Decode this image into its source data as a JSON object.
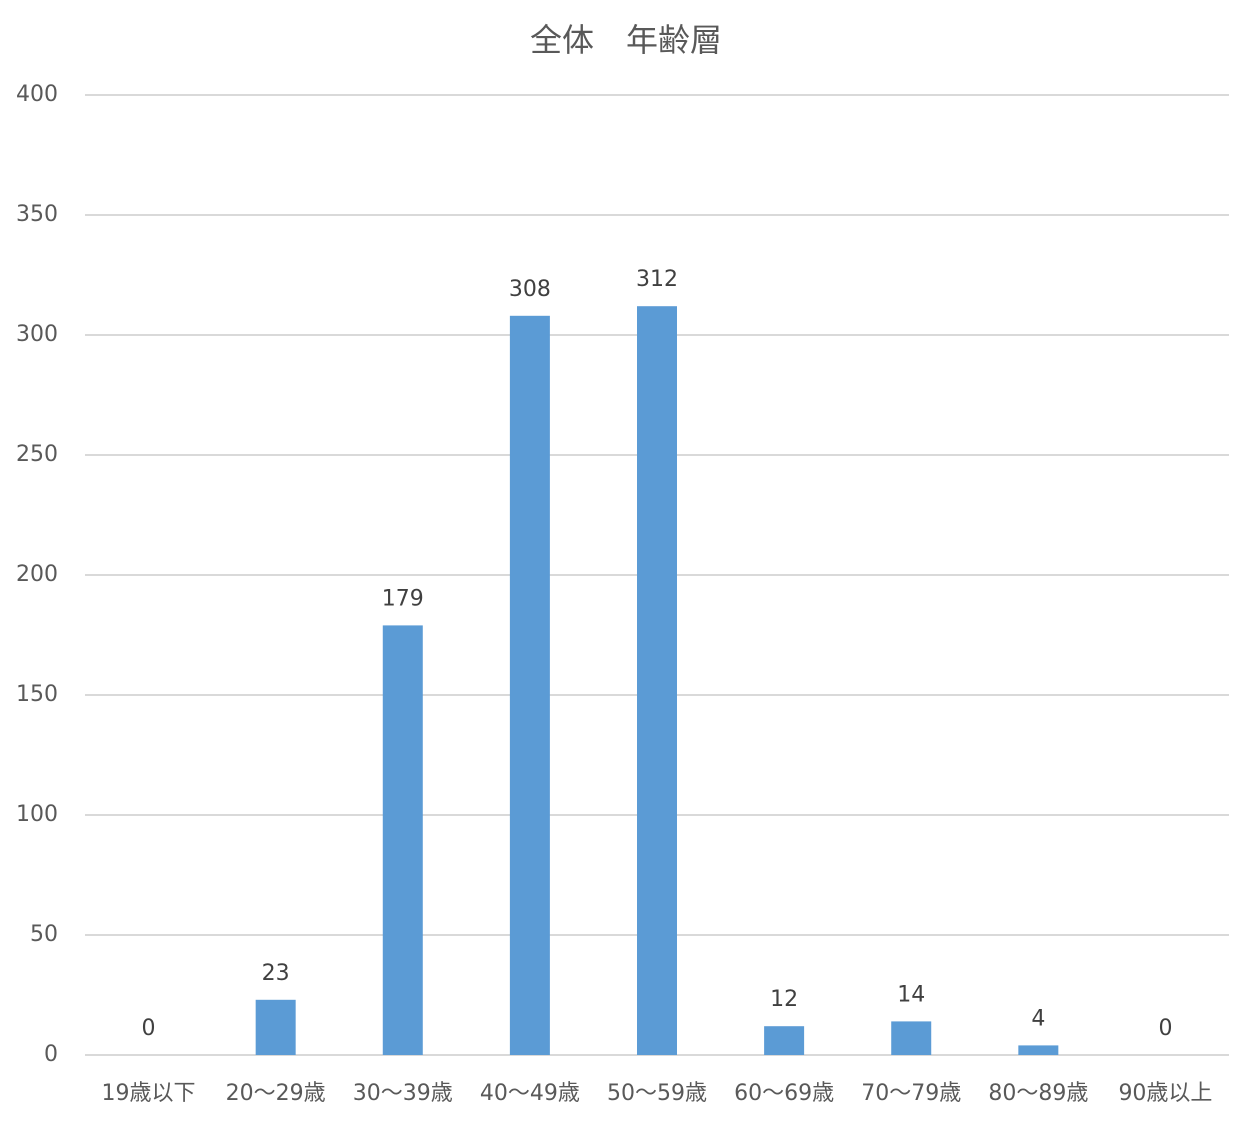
{
  "chart_data": {
    "type": "bar",
    "title": "全体　年齢層",
    "categories": [
      "19歳以下",
      "20～29歳",
      "30～39歳",
      "40～49歳",
      "50～59歳",
      "60～69歳",
      "70～79歳",
      "80～89歳",
      "90歳以上"
    ],
    "values": [
      0,
      23,
      179,
      308,
      312,
      12,
      14,
      4,
      0
    ],
    "color": "#5b9bd5",
    "ylim": [
      0,
      400
    ],
    "yticks": [
      0,
      50,
      100,
      150,
      200,
      250,
      300,
      350,
      400
    ],
    "grid": true
  }
}
